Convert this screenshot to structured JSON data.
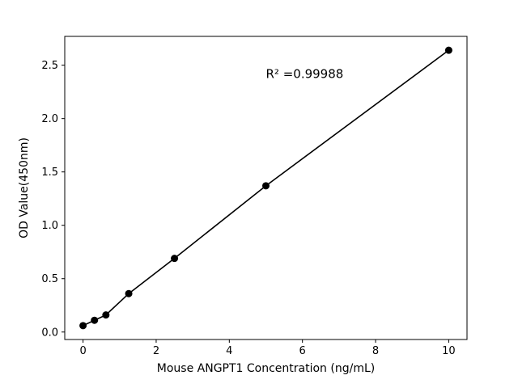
{
  "chart_data": {
    "type": "scatter",
    "title": "",
    "xlabel": "Mouse ANGPT1 Concentration (ng/mL)",
    "ylabel": "OD Value(450nm)",
    "x": [
      0,
      0.3125,
      0.625,
      1.25,
      2.5,
      5,
      10
    ],
    "y": [
      0.06,
      0.11,
      0.16,
      0.36,
      0.69,
      1.37,
      2.64
    ],
    "x_ticks": [
      0,
      2,
      4,
      6,
      8,
      10
    ],
    "y_ticks": [
      0.0,
      0.5,
      1.0,
      1.5,
      2.0,
      2.5
    ],
    "xlim": [
      -0.5,
      10.5
    ],
    "ylim": [
      -0.07,
      2.77
    ],
    "annotation": {
      "text": "R² =0.99988",
      "x": 5.0,
      "y": 2.38
    },
    "legend": null,
    "grid": false,
    "line_color": "#000000",
    "marker_color": "#000000",
    "background": "#ffffff"
  }
}
